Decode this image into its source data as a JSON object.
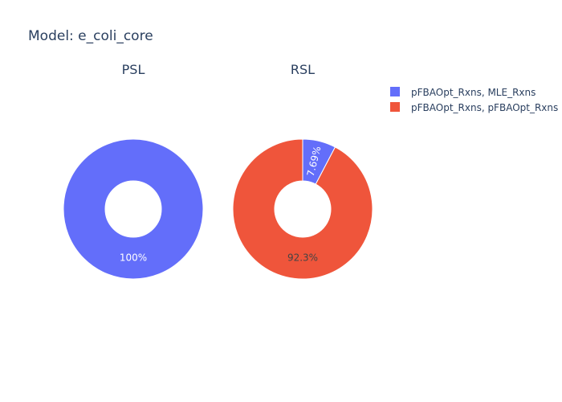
{
  "chart_data": {
    "type": "pie",
    "title": "Model: e_coli_core",
    "hole": true,
    "legend_position": "top-right",
    "categories": [
      "pFBAOpt_Rxns, MLE_Rxns",
      "pFBAOpt_Rxns, pFBAOpt_Rxns"
    ],
    "colors": [
      "#636efa",
      "#ef553b"
    ],
    "charts": [
      {
        "title": "PSL",
        "values": [
          1,
          0
        ],
        "labels": [
          "100%",
          ""
        ]
      },
      {
        "title": "RSL",
        "values": [
          1,
          12
        ],
        "labels": [
          "7.69%",
          "92.3%"
        ]
      }
    ]
  }
}
